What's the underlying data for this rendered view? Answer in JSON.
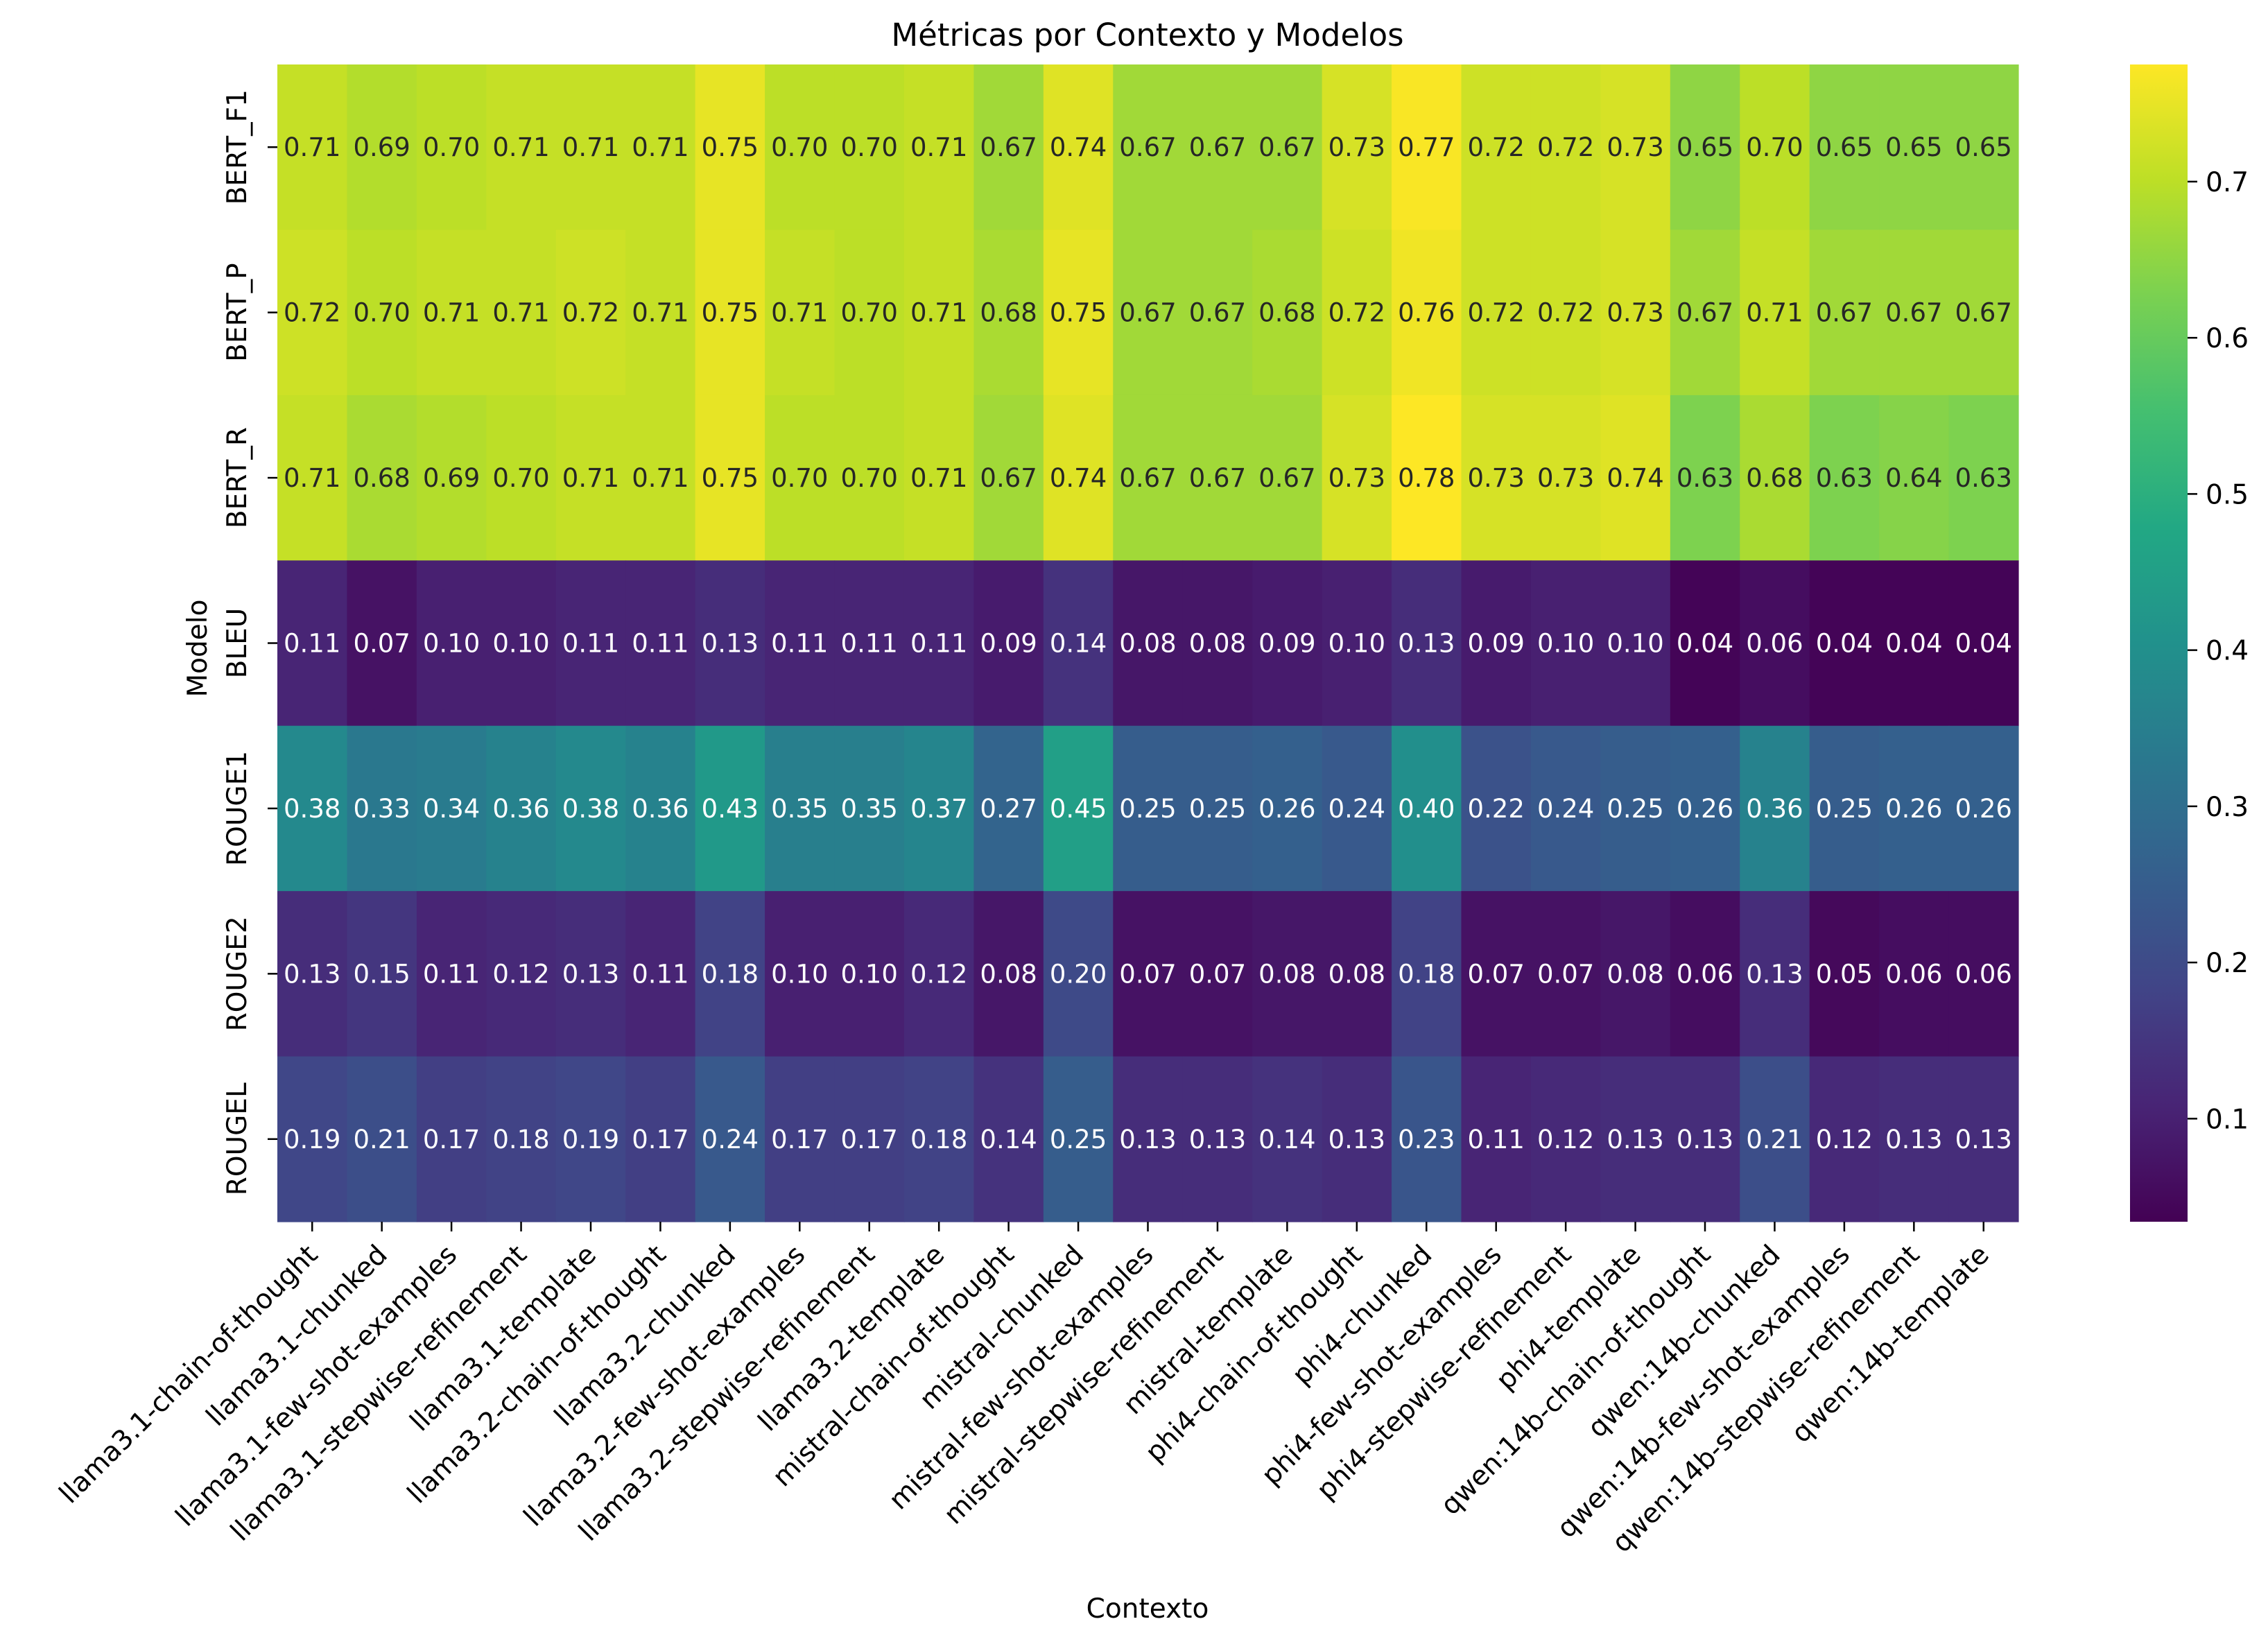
{
  "chart_data": {
    "type": "heatmap",
    "title": "Métricas por Contexto y Modelos",
    "xlabel": "Contexto",
    "ylabel": "Modelo",
    "colormap": "viridis",
    "colorbar": {
      "min": 0.034,
      "max": 0.775,
      "ticks": [
        0.1,
        0.2,
        0.3,
        0.4,
        0.5,
        0.6,
        0.7
      ]
    },
    "x": [
      "llama3.1-chain-of-thought",
      "llama3.1-chunked",
      "llama3.1-few-shot-examples",
      "llama3.1-stepwise-refinement",
      "llama3.1-template",
      "llama3.2-chain-of-thought",
      "llama3.2-chunked",
      "llama3.2-few-shot-examples",
      "llama3.2-stepwise-refinement",
      "llama3.2-template",
      "mistral-chain-of-thought",
      "mistral-chunked",
      "mistral-few-shot-examples",
      "mistral-stepwise-refinement",
      "mistral-template",
      "phi4-chain-of-thought",
      "phi4-chunked",
      "phi4-few-shot-examples",
      "phi4-stepwise-refinement",
      "phi4-template",
      "qwen:14b-chain-of-thought",
      "qwen:14b-chunked",
      "qwen:14b-few-shot-examples",
      "qwen:14b-stepwise-refinement",
      "qwen:14b-template"
    ],
    "y": [
      "BERT_F1",
      "BERT_P",
      "BERT_R",
      "BLEU",
      "ROUGE1",
      "ROUGE2",
      "ROUGEL"
    ],
    "values": [
      [
        0.71,
        0.69,
        0.7,
        0.71,
        0.71,
        0.71,
        0.75,
        0.7,
        0.7,
        0.71,
        0.67,
        0.74,
        0.67,
        0.67,
        0.67,
        0.73,
        0.77,
        0.72,
        0.72,
        0.73,
        0.65,
        0.7,
        0.65,
        0.65,
        0.65
      ],
      [
        0.72,
        0.7,
        0.71,
        0.71,
        0.72,
        0.71,
        0.75,
        0.71,
        0.7,
        0.71,
        0.68,
        0.75,
        0.67,
        0.67,
        0.68,
        0.72,
        0.76,
        0.72,
        0.72,
        0.73,
        0.67,
        0.71,
        0.67,
        0.67,
        0.67
      ],
      [
        0.71,
        0.68,
        0.69,
        0.7,
        0.71,
        0.71,
        0.75,
        0.7,
        0.7,
        0.71,
        0.67,
        0.74,
        0.67,
        0.67,
        0.67,
        0.73,
        0.78,
        0.73,
        0.73,
        0.74,
        0.63,
        0.68,
        0.63,
        0.64,
        0.63
      ],
      [
        0.11,
        0.07,
        0.1,
        0.1,
        0.11,
        0.11,
        0.13,
        0.11,
        0.11,
        0.11,
        0.09,
        0.14,
        0.08,
        0.08,
        0.09,
        0.1,
        0.13,
        0.09,
        0.1,
        0.1,
        0.04,
        0.06,
        0.04,
        0.04,
        0.04
      ],
      [
        0.38,
        0.33,
        0.34,
        0.36,
        0.38,
        0.36,
        0.43,
        0.35,
        0.35,
        0.37,
        0.27,
        0.45,
        0.25,
        0.25,
        0.26,
        0.24,
        0.4,
        0.22,
        0.24,
        0.25,
        0.26,
        0.36,
        0.25,
        0.26,
        0.26
      ],
      [
        0.13,
        0.15,
        0.11,
        0.12,
        0.13,
        0.11,
        0.18,
        0.1,
        0.1,
        0.12,
        0.08,
        0.2,
        0.07,
        0.07,
        0.08,
        0.08,
        0.18,
        0.07,
        0.07,
        0.08,
        0.06,
        0.13,
        0.05,
        0.06,
        0.06
      ],
      [
        0.19,
        0.21,
        0.17,
        0.18,
        0.19,
        0.17,
        0.24,
        0.17,
        0.17,
        0.18,
        0.14,
        0.25,
        0.13,
        0.13,
        0.14,
        0.13,
        0.23,
        0.11,
        0.12,
        0.13,
        0.13,
        0.21,
        0.12,
        0.13,
        0.13
      ]
    ]
  }
}
